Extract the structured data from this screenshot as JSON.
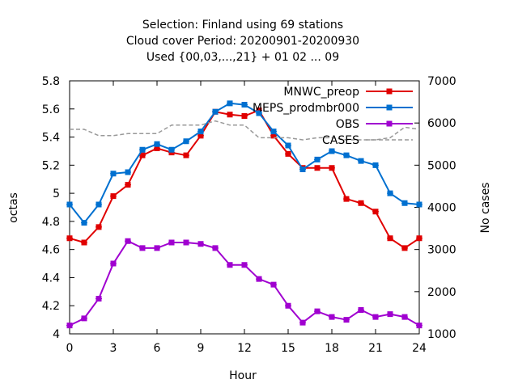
{
  "chart_data": {
    "type": "line",
    "title_lines": [
      "Selection: Finland using    69 stations",
      "Cloud cover   Period: 20200901-20200930",
      "Used {00,03,...,21} + 01 02 ... 09"
    ],
    "xlabel": "Hour",
    "ylabel": "octas",
    "y2label": "No cases",
    "xlim": [
      0,
      24
    ],
    "ylim": [
      4.0,
      5.8
    ],
    "y2lim": [
      1000,
      7000
    ],
    "x_ticks": [
      "0",
      "3",
      "6",
      "9",
      "12",
      "15",
      "18",
      "21",
      "24"
    ],
    "y_ticks": [
      "4",
      "4.2",
      "4.4",
      "4.6",
      "4.8",
      "5",
      "5.2",
      "5.4",
      "5.6",
      "5.8"
    ],
    "y2_ticks": [
      "1000",
      "2000",
      "3000",
      "4000",
      "5000",
      "6000",
      "7000"
    ],
    "grid": false,
    "legend_position": "top-right",
    "x": [
      0,
      1,
      2,
      3,
      4,
      5,
      6,
      7,
      8,
      9,
      10,
      11,
      12,
      13,
      14,
      15,
      16,
      17,
      18,
      19,
      20,
      21,
      22,
      23,
      24
    ],
    "series": [
      {
        "name": "MNWC_preop",
        "color": "#e00000",
        "axis": "left",
        "style": "solid-markers",
        "values": [
          4.68,
          4.65,
          4.76,
          4.98,
          5.06,
          5.27,
          5.32,
          5.29,
          5.27,
          5.41,
          5.58,
          5.56,
          5.55,
          5.59,
          5.41,
          5.28,
          5.18,
          5.18,
          5.18,
          4.96,
          4.93,
          4.87,
          4.68,
          4.61,
          4.68
        ]
      },
      {
        "name": "MEPS_prodmbr000",
        "color": "#0070d0",
        "axis": "left",
        "style": "solid-markers",
        "values": [
          4.92,
          4.79,
          4.92,
          5.14,
          5.15,
          5.31,
          5.35,
          5.31,
          5.37,
          5.44,
          5.58,
          5.64,
          5.63,
          5.57,
          5.44,
          5.34,
          5.17,
          5.24,
          5.3,
          5.27,
          5.23,
          5.2,
          5.0,
          4.93,
          4.92
        ]
      },
      {
        "name": "OBS",
        "color": "#a000d0",
        "axis": "left",
        "style": "solid-markers",
        "values": [
          4.06,
          4.11,
          4.25,
          4.5,
          4.66,
          4.61,
          4.61,
          4.65,
          4.65,
          4.64,
          4.61,
          4.49,
          4.49,
          4.39,
          4.35,
          4.2,
          4.08,
          4.16,
          4.12,
          4.1,
          4.17,
          4.12,
          4.14,
          4.12,
          4.06
        ]
      },
      {
        "name": "CASES",
        "color": "#999999",
        "axis": "right",
        "style": "dashed",
        "values": [
          5850,
          5850,
          5700,
          5700,
          5750,
          5750,
          5750,
          5950,
          5950,
          5950,
          6050,
          5950,
          5950,
          5650,
          5650,
          5650,
          5600,
          5650,
          5650,
          5600,
          5600,
          5600,
          5650,
          5900,
          5850
        ]
      }
    ]
  }
}
